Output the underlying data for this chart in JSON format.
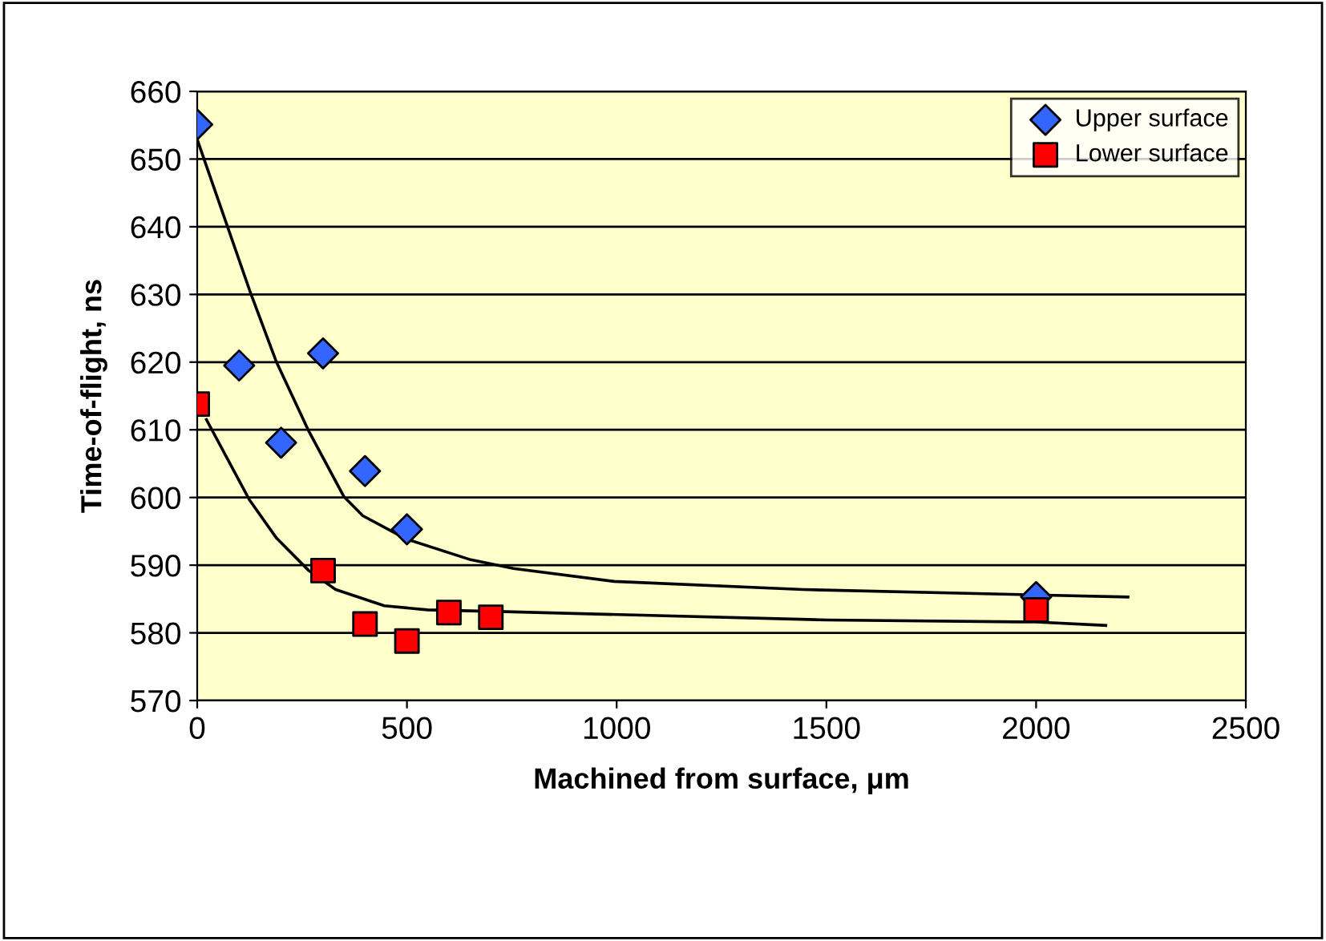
{
  "chart_data": {
    "type": "scatter",
    "xlabel": "Machined from surface, μm",
    "ylabel": "Time-of-flight, ns",
    "xlim": [
      0,
      2500
    ],
    "ylim": [
      570,
      660
    ],
    "xticks": [
      0,
      500,
      1000,
      1500,
      2000,
      2500
    ],
    "yticks": [
      570,
      580,
      590,
      600,
      610,
      620,
      630,
      640,
      650,
      660
    ],
    "grid": "y",
    "legend": "top right",
    "series": [
      {
        "name": "Upper surface",
        "color": "#3366ff",
        "marker": "diamond",
        "x": [
          0,
          100,
          200,
          300,
          400,
          500,
          2000
        ],
        "values": [
          655.1,
          619.5,
          608.1,
          621.3,
          603.9,
          595.3,
          585.3
        ]
      },
      {
        "name": "Lower surface",
        "color": "#ff0000",
        "marker": "square",
        "x": [
          0,
          300,
          400,
          500,
          600,
          700,
          2000
        ],
        "values": [
          613.8,
          589.2,
          581.3,
          578.8,
          583,
          582.3,
          583.4
        ]
      },
      {
        "type": "line",
        "color": "#000000",
        "marker": "none",
        "x": [
          0,
          125,
          189,
          266,
          350,
          395,
          497,
          652,
          754,
          994,
          1445,
          2000,
          2219
        ],
        "values": [
          652.9,
          630.6,
          620,
          609.8,
          600.1,
          597.3,
          593.9,
          590.8,
          589.5,
          587.6,
          586.4,
          585.6,
          585.3
        ]
      },
      {
        "type": "line",
        "color": "#000000",
        "marker": "none",
        "x": [
          22,
          125,
          189,
          266,
          330,
          446,
          549,
          754,
          1502,
          2000,
          2166
        ],
        "values": [
          611.5,
          599.6,
          594,
          589.2,
          586.4,
          584,
          583.4,
          583.1,
          581.9,
          581.6,
          581.1
        ]
      }
    ]
  }
}
